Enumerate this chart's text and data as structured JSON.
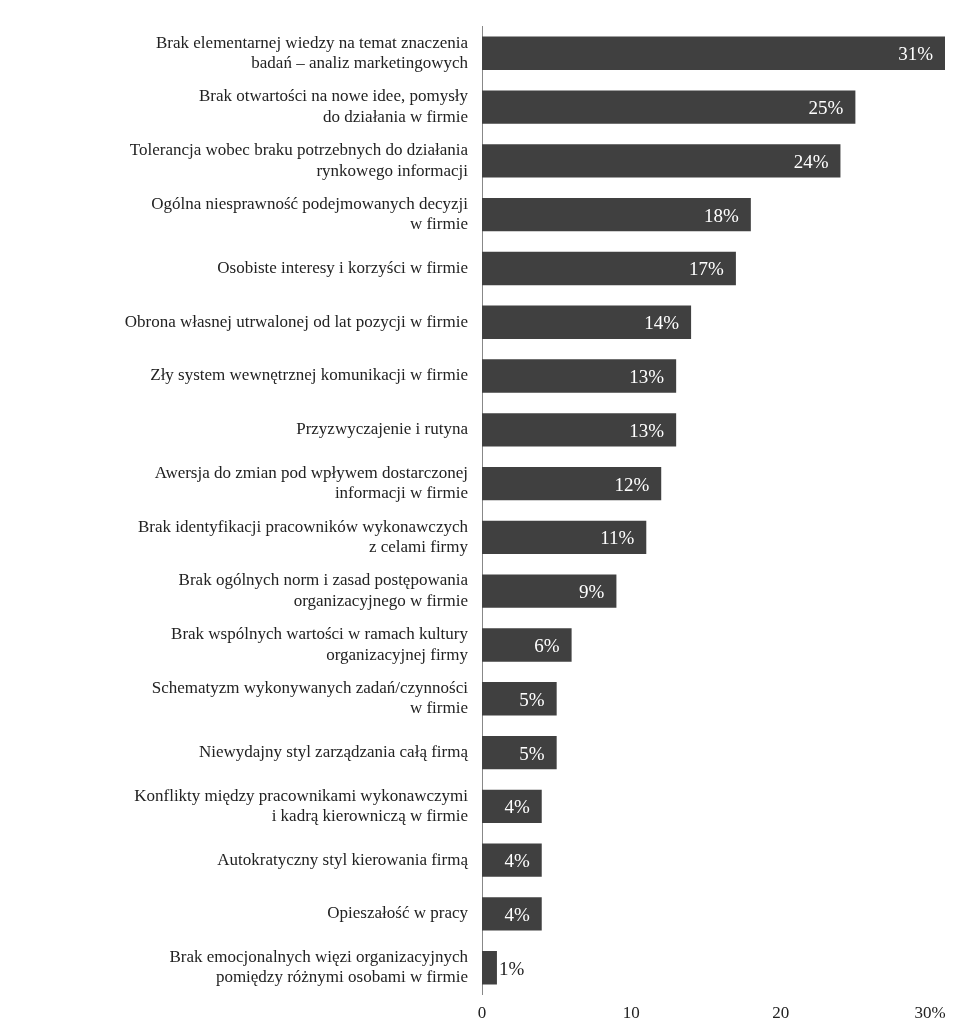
{
  "chart_data": {
    "type": "bar",
    "orientation": "horizontal",
    "categories": [
      "Brak elementarnej wiedzy na temat znaczenia\nbadań – analiz marketingowych",
      "Brak otwartości na nowe idee, pomysły\ndo działania w firmie",
      "Tolerancja wobec braku potrzebnych do działania\nrynkowego informacji",
      "Ogólna niesprawność podejmowanych decyzji\nw firmie",
      "Osobiste interesy i korzyści w firmie",
      "Obrona własnej utrwalonej od lat pozycji w firmie",
      "Zły system wewnętrznej komunikacji w firmie",
      "Przyzwyczajenie i rutyna",
      "Awersja do zmian pod wpływem dostarczonej\ninformacji w firmie",
      "Brak identyfikacji pracowników wykonawczych\nz celami firmy",
      "Brak ogólnych norm i zasad postępowania\norganizacyjnego w firmie",
      "Brak wspólnych wartości w ramach kultury\norganizacyjnej firmy",
      "Schematyzm wykonywanych zadań/czynności\nw firmie",
      "Niewydajny styl zarządzania całą firmą",
      "Konflikty między pracownikami wykonawczymi\ni kadrą kierowniczą w firmie",
      "Autokratyczny styl kierowania firmą",
      "Opieszałość w pracy",
      "Brak emocjonalnych więzi organizacyjnych\npomiędzy różnymi osobami w firmie"
    ],
    "values": [
      31,
      25,
      24,
      18,
      17,
      14,
      13,
      13,
      12,
      11,
      9,
      6,
      5,
      5,
      4,
      4,
      4,
      1
    ],
    "value_labels": [
      "31%",
      "25%",
      "24%",
      "18%",
      "17%",
      "14%",
      "13%",
      "13%",
      "12%",
      "11%",
      "9%",
      "6%",
      "5%",
      "5%",
      "4%",
      "4%",
      "4%",
      "1%"
    ],
    "color": "#404040",
    "xlim": [
      0,
      31
    ],
    "xticks": [
      0,
      10,
      20,
      {
        "value": 30,
        "label": "30%"
      }
    ],
    "grid": false,
    "legend": false
  }
}
